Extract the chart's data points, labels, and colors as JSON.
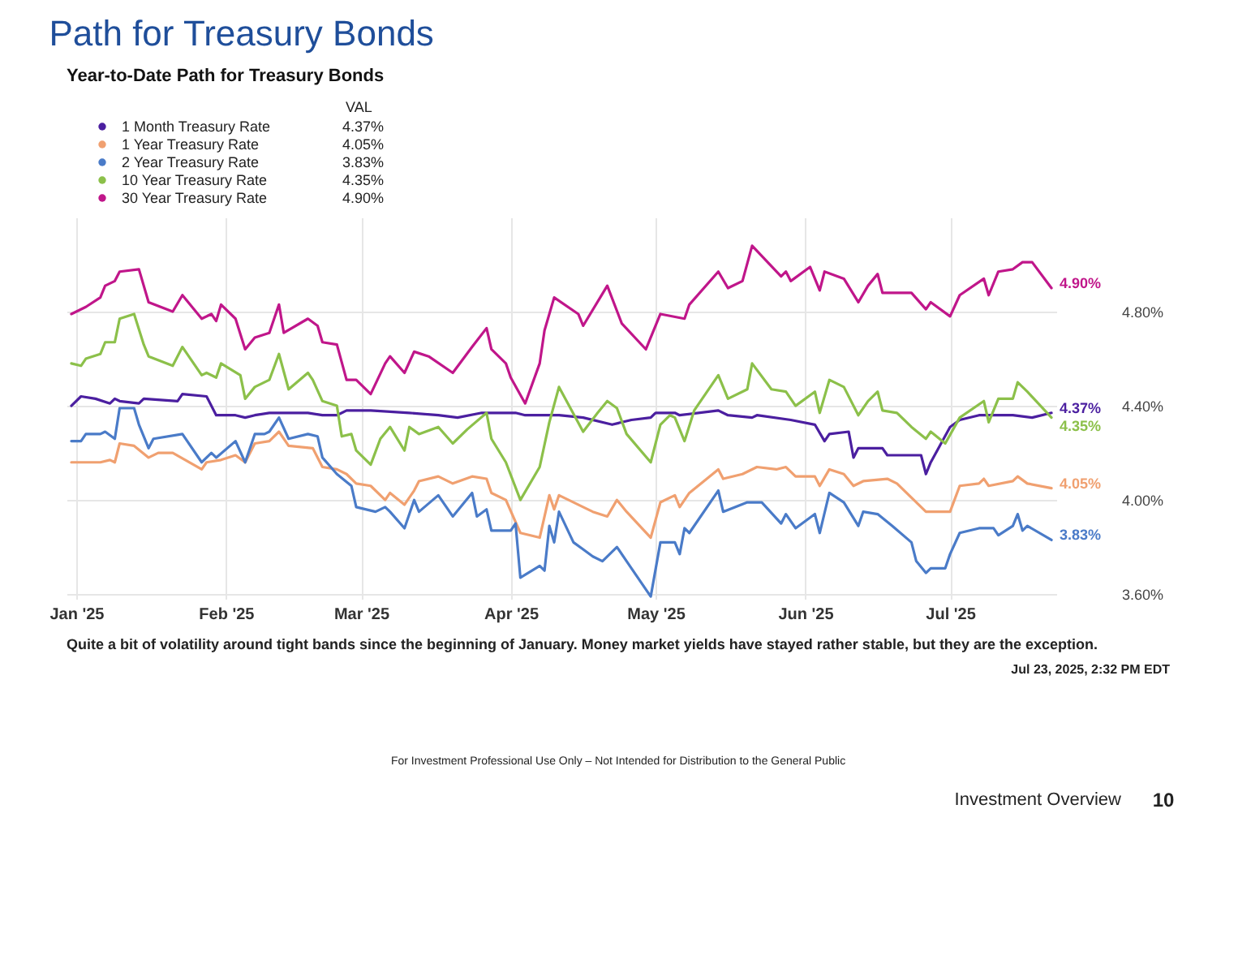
{
  "chart_data": {
    "type": "line",
    "title": "Path for Treasury Bonds",
    "subtitle": "Year-to-Date Path for Treasury Bonds",
    "legend_title": "VAL",
    "legend": "top left",
    "grid": true,
    "xlim": [
      "2024-12-30",
      "2025-07-23"
    ],
    "xticks": [
      {
        "value": "2025-01-01",
        "label": "Jan '25"
      },
      {
        "value": "2025-02-01",
        "label": "Feb '25"
      },
      {
        "value": "2025-03-01",
        "label": "Mar '25"
      },
      {
        "value": "2025-04-01",
        "label": "Apr '25"
      },
      {
        "value": "2025-05-01",
        "label": "May '25"
      },
      {
        "value": "2025-06-01",
        "label": "Jun '25"
      },
      {
        "value": "2025-07-01",
        "label": "Jul '25"
      }
    ],
    "ylim": [
      3.58,
      5.2
    ],
    "yticks": [
      {
        "value": 3.6,
        "label": "3.60%"
      },
      {
        "value": 4.0,
        "label": "4.00%"
      },
      {
        "value": 4.4,
        "label": "4.40%"
      },
      {
        "value": 4.8,
        "label": "4.80%"
      }
    ],
    "series": [
      {
        "name": "1 Month Treasury Rate",
        "color": "#4b1fa0",
        "x": [
          "2024-12-31",
          "2025-01-02",
          "2025-01-05",
          "2025-01-08",
          "2025-01-09",
          "2025-01-10",
          "2025-01-14",
          "2025-01-15",
          "2025-01-22",
          "2025-01-23",
          "2025-01-28",
          "2025-01-30",
          "2025-02-03",
          "2025-02-05",
          "2025-02-07",
          "2025-02-10",
          "2025-02-12",
          "2025-02-18",
          "2025-02-21",
          "2025-02-24",
          "2025-02-26",
          "2025-03-03",
          "2025-03-11",
          "2025-03-17",
          "2025-03-21",
          "2025-03-26",
          "2025-04-02",
          "2025-04-04",
          "2025-04-11",
          "2025-04-16",
          "2025-04-22",
          "2025-04-26",
          "2025-04-30",
          "2025-05-01",
          "2025-05-05",
          "2025-05-06",
          "2025-05-14",
          "2025-05-16",
          "2025-05-21",
          "2025-05-22",
          "2025-05-29",
          "2025-06-03",
          "2025-06-05",
          "2025-06-06",
          "2025-06-10",
          "2025-06-11",
          "2025-06-12",
          "2025-06-17",
          "2025-06-18",
          "2025-06-25",
          "2025-06-26",
          "2025-06-27",
          "2025-07-01",
          "2025-07-03",
          "2025-07-07",
          "2025-07-10",
          "2025-07-14",
          "2025-07-18",
          "2025-07-22"
        ],
        "values": [
          4.4,
          4.44,
          4.43,
          4.41,
          4.43,
          4.42,
          4.41,
          4.43,
          4.42,
          4.45,
          4.44,
          4.36,
          4.36,
          4.35,
          4.36,
          4.37,
          4.37,
          4.37,
          4.36,
          4.36,
          4.38,
          4.38,
          4.37,
          4.36,
          4.35,
          4.37,
          4.37,
          4.36,
          4.36,
          4.35,
          4.32,
          4.34,
          4.35,
          4.37,
          4.37,
          4.36,
          4.38,
          4.36,
          4.35,
          4.36,
          4.34,
          4.32,
          4.25,
          4.28,
          4.29,
          4.18,
          4.22,
          4.22,
          4.19,
          4.19,
          4.11,
          4.16,
          4.31,
          4.34,
          4.36,
          4.36,
          4.36,
          4.35,
          4.37
        ],
        "value_labels": [
          null,
          null,
          null,
          null,
          null,
          null,
          null,
          null,
          null,
          null,
          null,
          null,
          null,
          null,
          null,
          null,
          null,
          null,
          null,
          null,
          null,
          null,
          null,
          null,
          null,
          null,
          null,
          null,
          null,
          null,
          null,
          null,
          null,
          null,
          null,
          null,
          null,
          null,
          null,
          null,
          null,
          null,
          null,
          null,
          null,
          null,
          null,
          null,
          null,
          null,
          null,
          null,
          null,
          null,
          null,
          null,
          null,
          null,
          "4.37%"
        ]
      },
      {
        "name": "1 Year Treasury Rate",
        "color": "#f0a070",
        "x": [
          "2024-12-31",
          "2025-01-03",
          "2025-01-06",
          "2025-01-08",
          "2025-01-09",
          "2025-01-10",
          "2025-01-13",
          "2025-01-16",
          "2025-01-18",
          "2025-01-21",
          "2025-01-27",
          "2025-01-28",
          "2025-01-31",
          "2025-02-03",
          "2025-02-05",
          "2025-02-07",
          "2025-02-10",
          "2025-02-12",
          "2025-02-14",
          "2025-02-19",
          "2025-02-21",
          "2025-02-24",
          "2025-02-26",
          "2025-02-28",
          "2025-03-03",
          "2025-03-06",
          "2025-03-07",
          "2025-03-10",
          "2025-03-12",
          "2025-03-13",
          "2025-03-17",
          "2025-03-20",
          "2025-03-24",
          "2025-03-27",
          "2025-03-28",
          "2025-03-31",
          "2025-04-03",
          "2025-04-07",
          "2025-04-09",
          "2025-04-10",
          "2025-04-11",
          "2025-04-16",
          "2025-04-18",
          "2025-04-21",
          "2025-04-23",
          "2025-04-25",
          "2025-04-30",
          "2025-05-02",
          "2025-05-05",
          "2025-05-06",
          "2025-05-08",
          "2025-05-11",
          "2025-05-14",
          "2025-05-15",
          "2025-05-19",
          "2025-05-22",
          "2025-05-26",
          "2025-05-28",
          "2025-05-30",
          "2025-06-03",
          "2025-06-04",
          "2025-06-06",
          "2025-06-09",
          "2025-06-11",
          "2025-06-13",
          "2025-06-18",
          "2025-06-20",
          "2025-06-26",
          "2025-07-01",
          "2025-07-03",
          "2025-07-07",
          "2025-07-08",
          "2025-07-09",
          "2025-07-14",
          "2025-07-15",
          "2025-07-17",
          "2025-07-22"
        ],
        "values": [
          4.16,
          4.16,
          4.16,
          4.17,
          4.16,
          4.24,
          4.23,
          4.18,
          4.2,
          4.2,
          4.13,
          4.16,
          4.17,
          4.19,
          4.16,
          4.24,
          4.25,
          4.29,
          4.23,
          4.22,
          4.14,
          4.13,
          4.11,
          4.07,
          4.06,
          4.0,
          4.03,
          3.98,
          4.04,
          4.08,
          4.1,
          4.07,
          4.1,
          4.09,
          4.03,
          4.0,
          3.86,
          3.84,
          4.02,
          3.96,
          4.02,
          3.97,
          3.95,
          3.93,
          4.0,
          3.95,
          3.84,
          3.99,
          4.02,
          3.97,
          4.03,
          4.08,
          4.13,
          4.09,
          4.11,
          4.14,
          4.13,
          4.14,
          4.1,
          4.1,
          4.06,
          4.13,
          4.11,
          4.06,
          4.08,
          4.09,
          4.07,
          3.95,
          3.95,
          4.06,
          4.07,
          4.09,
          4.06,
          4.08,
          4.1,
          4.07,
          4.05
        ],
        "value_labels": [
          null,
          null,
          null,
          null,
          null,
          null,
          null,
          null,
          null,
          null,
          null,
          null,
          null,
          null,
          null,
          null,
          null,
          null,
          null,
          null,
          null,
          null,
          null,
          null,
          null,
          null,
          null,
          null,
          null,
          null,
          null,
          null,
          null,
          null,
          null,
          null,
          null,
          null,
          null,
          null,
          null,
          null,
          null,
          null,
          null,
          null,
          null,
          null,
          null,
          null,
          null,
          null,
          null,
          null,
          null,
          null,
          null,
          null,
          null,
          null,
          null,
          null,
          null,
          null,
          null,
          null,
          null,
          null,
          null,
          null,
          null,
          null,
          null,
          null,
          null,
          null,
          "4.05%"
        ]
      },
      {
        "name": "2 Year Treasury Rate",
        "color": "#4a7bc8",
        "x": [
          "2024-12-31",
          "2025-01-02",
          "2025-01-03",
          "2025-01-06",
          "2025-01-07",
          "2025-01-09",
          "2025-01-10",
          "2025-01-13",
          "2025-01-14",
          "2025-01-16",
          "2025-01-17",
          "2025-01-23",
          "2025-01-27",
          "2025-01-29",
          "2025-01-30",
          "2025-02-03",
          "2025-02-05",
          "2025-02-07",
          "2025-02-09",
          "2025-02-10",
          "2025-02-12",
          "2025-02-14",
          "2025-02-18",
          "2025-02-20",
          "2025-02-21",
          "2025-02-24",
          "2025-02-27",
          "2025-02-28",
          "2025-03-04",
          "2025-03-06",
          "2025-03-07",
          "2025-03-10",
          "2025-03-12",
          "2025-03-13",
          "2025-03-17",
          "2025-03-20",
          "2025-03-24",
          "2025-03-25",
          "2025-03-27",
          "2025-03-28",
          "2025-04-01",
          "2025-04-02",
          "2025-04-03",
          "2025-04-07",
          "2025-04-08",
          "2025-04-09",
          "2025-04-10",
          "2025-04-11",
          "2025-04-14",
          "2025-04-16",
          "2025-04-18",
          "2025-04-20",
          "2025-04-23",
          "2025-04-25",
          "2025-04-30",
          "2025-05-02",
          "2025-05-05",
          "2025-05-06",
          "2025-05-07",
          "2025-05-08",
          "2025-05-14",
          "2025-05-15",
          "2025-05-20",
          "2025-05-21",
          "2025-05-23",
          "2025-05-27",
          "2025-05-28",
          "2025-05-30",
          "2025-06-03",
          "2025-06-04",
          "2025-06-06",
          "2025-06-09",
          "2025-06-12",
          "2025-06-13",
          "2025-06-16",
          "2025-06-19",
          "2025-06-23",
          "2025-06-24",
          "2025-06-26",
          "2025-06-27",
          "2025-06-30",
          "2025-07-01",
          "2025-07-03",
          "2025-07-07",
          "2025-07-10",
          "2025-07-11",
          "2025-07-14",
          "2025-07-15",
          "2025-07-16",
          "2025-07-17",
          "2025-07-22"
        ],
        "values": [
          4.25,
          4.25,
          4.28,
          4.28,
          4.29,
          4.26,
          4.39,
          4.39,
          4.32,
          4.22,
          4.26,
          4.28,
          4.16,
          4.2,
          4.18,
          4.25,
          4.16,
          4.28,
          4.28,
          4.29,
          4.35,
          4.26,
          4.28,
          4.27,
          4.18,
          4.11,
          4.06,
          3.97,
          3.95,
          3.97,
          3.95,
          3.88,
          4.0,
          3.95,
          4.02,
          3.93,
          4.03,
          3.93,
          3.96,
          3.87,
          3.87,
          3.9,
          3.67,
          3.72,
          3.7,
          3.89,
          3.82,
          3.95,
          3.82,
          3.79,
          3.76,
          3.74,
          3.8,
          3.74,
          3.59,
          3.82,
          3.82,
          3.77,
          3.88,
          3.86,
          4.04,
          3.95,
          3.99,
          3.99,
          3.99,
          3.9,
          3.94,
          3.88,
          3.94,
          3.86,
          4.03,
          3.99,
          3.89,
          3.95,
          3.94,
          3.89,
          3.82,
          3.74,
          3.69,
          3.71,
          3.71,
          3.77,
          3.86,
          3.88,
          3.88,
          3.85,
          3.89,
          3.94,
          3.87,
          3.89,
          3.83
        ],
        "value_labels": [
          null,
          null,
          null,
          null,
          null,
          null,
          null,
          null,
          null,
          null,
          null,
          null,
          null,
          null,
          null,
          null,
          null,
          null,
          null,
          null,
          null,
          null,
          null,
          null,
          null,
          null,
          null,
          null,
          null,
          null,
          null,
          null,
          null,
          null,
          null,
          null,
          null,
          null,
          null,
          null,
          null,
          null,
          null,
          null,
          null,
          null,
          null,
          null,
          null,
          null,
          null,
          null,
          null,
          null,
          null,
          null,
          null,
          null,
          null,
          null,
          null,
          null,
          null,
          null,
          null,
          null,
          null,
          null,
          null,
          null,
          null,
          null,
          null,
          null,
          null,
          null,
          null,
          null,
          null,
          null,
          null,
          null,
          null,
          null,
          null,
          null,
          null,
          null,
          null,
          null,
          "3.83%"
        ]
      },
      {
        "name": "10 Year Treasury Rate",
        "color": "#8cc04a",
        "x": [
          "2024-12-31",
          "2025-01-02",
          "2025-01-03",
          "2025-01-06",
          "2025-01-07",
          "2025-01-09",
          "2025-01-10",
          "2025-01-13",
          "2025-01-15",
          "2025-01-16",
          "2025-01-21",
          "2025-01-23",
          "2025-01-27",
          "2025-01-28",
          "2025-01-30",
          "2025-01-31",
          "2025-02-04",
          "2025-02-05",
          "2025-02-07",
          "2025-02-10",
          "2025-02-12",
          "2025-02-14",
          "2025-02-18",
          "2025-02-19",
          "2025-02-21",
          "2025-02-24",
          "2025-02-25",
          "2025-02-27",
          "2025-02-28",
          "2025-03-03",
          "2025-03-05",
          "2025-03-07",
          "2025-03-10",
          "2025-03-11",
          "2025-03-13",
          "2025-03-17",
          "2025-03-20",
          "2025-03-23",
          "2025-03-27",
          "2025-03-28",
          "2025-03-31",
          "2025-04-03",
          "2025-04-07",
          "2025-04-09",
          "2025-04-11",
          "2025-04-16",
          "2025-04-19",
          "2025-04-21",
          "2025-04-23",
          "2025-04-25",
          "2025-04-30",
          "2025-05-02",
          "2025-05-04",
          "2025-05-05",
          "2025-05-07",
          "2025-05-09",
          "2025-05-14",
          "2025-05-16",
          "2025-05-20",
          "2025-05-21",
          "2025-05-25",
          "2025-05-28",
          "2025-05-30",
          "2025-06-03",
          "2025-06-04",
          "2025-06-06",
          "2025-06-09",
          "2025-06-12",
          "2025-06-14",
          "2025-06-16",
          "2025-06-17",
          "2025-06-20",
          "2025-06-23",
          "2025-06-26",
          "2025-06-27",
          "2025-06-30",
          "2025-07-03",
          "2025-07-08",
          "2025-07-09",
          "2025-07-11",
          "2025-07-14",
          "2025-07-15",
          "2025-07-17",
          "2025-07-22"
        ],
        "values": [
          4.58,
          4.57,
          4.6,
          4.62,
          4.67,
          4.67,
          4.77,
          4.79,
          4.66,
          4.61,
          4.57,
          4.65,
          4.53,
          4.54,
          4.52,
          4.58,
          4.53,
          4.43,
          4.48,
          4.51,
          4.62,
          4.47,
          4.54,
          4.51,
          4.42,
          4.4,
          4.27,
          4.28,
          4.21,
          4.15,
          4.26,
          4.31,
          4.21,
          4.31,
          4.28,
          4.31,
          4.24,
          4.3,
          4.37,
          4.26,
          4.16,
          4.0,
          4.14,
          4.33,
          4.48,
          4.29,
          4.37,
          4.42,
          4.39,
          4.28,
          4.16,
          4.32,
          4.36,
          4.35,
          4.25,
          4.38,
          4.53,
          4.43,
          4.47,
          4.58,
          4.47,
          4.46,
          4.4,
          4.46,
          4.37,
          4.51,
          4.48,
          4.36,
          4.42,
          4.46,
          4.38,
          4.37,
          4.31,
          4.26,
          4.29,
          4.24,
          4.35,
          4.42,
          4.33,
          4.43,
          4.43,
          4.5,
          4.46,
          4.35
        ],
        "value_labels": [
          null,
          null,
          null,
          null,
          null,
          null,
          null,
          null,
          null,
          null,
          null,
          null,
          null,
          null,
          null,
          null,
          null,
          null,
          null,
          null,
          null,
          null,
          null,
          null,
          null,
          null,
          null,
          null,
          null,
          null,
          null,
          null,
          null,
          null,
          null,
          null,
          null,
          null,
          null,
          null,
          null,
          null,
          null,
          null,
          null,
          null,
          null,
          null,
          null,
          null,
          null,
          null,
          null,
          null,
          null,
          null,
          null,
          null,
          null,
          null,
          null,
          null,
          null,
          null,
          null,
          null,
          null,
          null,
          null,
          null,
          null,
          null,
          null,
          null,
          null,
          null,
          null,
          null,
          null,
          null,
          null,
          null,
          null,
          "4.35%"
        ]
      },
      {
        "name": "30 Year Treasury Rate",
        "color": "#c0168a",
        "x": [
          "2024-12-31",
          "2025-01-03",
          "2025-01-06",
          "2025-01-07",
          "2025-01-09",
          "2025-01-10",
          "2025-01-14",
          "2025-01-16",
          "2025-01-21",
          "2025-01-23",
          "2025-01-27",
          "2025-01-29",
          "2025-01-30",
          "2025-01-31",
          "2025-02-03",
          "2025-02-05",
          "2025-02-07",
          "2025-02-10",
          "2025-02-12",
          "2025-02-13",
          "2025-02-18",
          "2025-02-20",
          "2025-02-21",
          "2025-02-24",
          "2025-02-26",
          "2025-02-28",
          "2025-03-03",
          "2025-03-06",
          "2025-03-07",
          "2025-03-10",
          "2025-03-12",
          "2025-03-15",
          "2025-03-20",
          "2025-03-24",
          "2025-03-27",
          "2025-03-28",
          "2025-03-31",
          "2025-04-01",
          "2025-04-04",
          "2025-04-07",
          "2025-04-08",
          "2025-04-10",
          "2025-04-15",
          "2025-04-16",
          "2025-04-21",
          "2025-04-24",
          "2025-04-29",
          "2025-05-02",
          "2025-05-07",
          "2025-05-08",
          "2025-05-14",
          "2025-05-16",
          "2025-05-19",
          "2025-05-21",
          "2025-05-27",
          "2025-05-28",
          "2025-05-29",
          "2025-06-02",
          "2025-06-04",
          "2025-06-05",
          "2025-06-09",
          "2025-06-12",
          "2025-06-14",
          "2025-06-16",
          "2025-06-17",
          "2025-06-23",
          "2025-06-26",
          "2025-06-27",
          "2025-07-01",
          "2025-07-03",
          "2025-07-08",
          "2025-07-09",
          "2025-07-11",
          "2025-07-14",
          "2025-07-16",
          "2025-07-18",
          "2025-07-22"
        ],
        "values": [
          4.79,
          4.82,
          4.86,
          4.91,
          4.93,
          4.97,
          4.98,
          4.84,
          4.8,
          4.87,
          4.77,
          4.79,
          4.76,
          4.83,
          4.77,
          4.64,
          4.69,
          4.71,
          4.83,
          4.71,
          4.77,
          4.74,
          4.67,
          4.66,
          4.51,
          4.51,
          4.45,
          4.58,
          4.61,
          4.54,
          4.63,
          4.61,
          4.54,
          4.65,
          4.73,
          4.64,
          4.58,
          4.52,
          4.41,
          4.58,
          4.72,
          4.86,
          4.79,
          4.74,
          4.91,
          4.75,
          4.64,
          4.79,
          4.77,
          4.83,
          4.97,
          4.9,
          4.93,
          5.08,
          4.95,
          4.97,
          4.93,
          4.99,
          4.89,
          4.97,
          4.94,
          4.84,
          4.91,
          4.96,
          4.88,
          4.88,
          4.81,
          4.84,
          4.78,
          4.87,
          4.94,
          4.87,
          4.97,
          4.98,
          5.01,
          5.01,
          4.9
        ],
        "value_labels": [
          null,
          null,
          null,
          null,
          null,
          null,
          null,
          null,
          null,
          null,
          null,
          null,
          null,
          null,
          null,
          null,
          null,
          null,
          null,
          null,
          null,
          null,
          null,
          null,
          null,
          null,
          null,
          null,
          null,
          null,
          null,
          null,
          null,
          null,
          null,
          null,
          null,
          null,
          null,
          null,
          null,
          null,
          null,
          null,
          null,
          null,
          null,
          null,
          null,
          null,
          null,
          null,
          null,
          null,
          null,
          null,
          null,
          null,
          null,
          null,
          null,
          null,
          null,
          null,
          null,
          null,
          null,
          null,
          null,
          null,
          null,
          null,
          null,
          null,
          null,
          null,
          "4.90%"
        ]
      }
    ],
    "annotations": [
      "Quite a bit of volatility around tight bands since the beginning of January. Money market yields have stayed rather stable, but they are the exception.",
      "Jul 23, 2025, 2:32 PM EDT",
      "For Investment Professional Use Only – Not Intended for Distribution to the General Public",
      "Investment Overview",
      "10"
    ]
  }
}
